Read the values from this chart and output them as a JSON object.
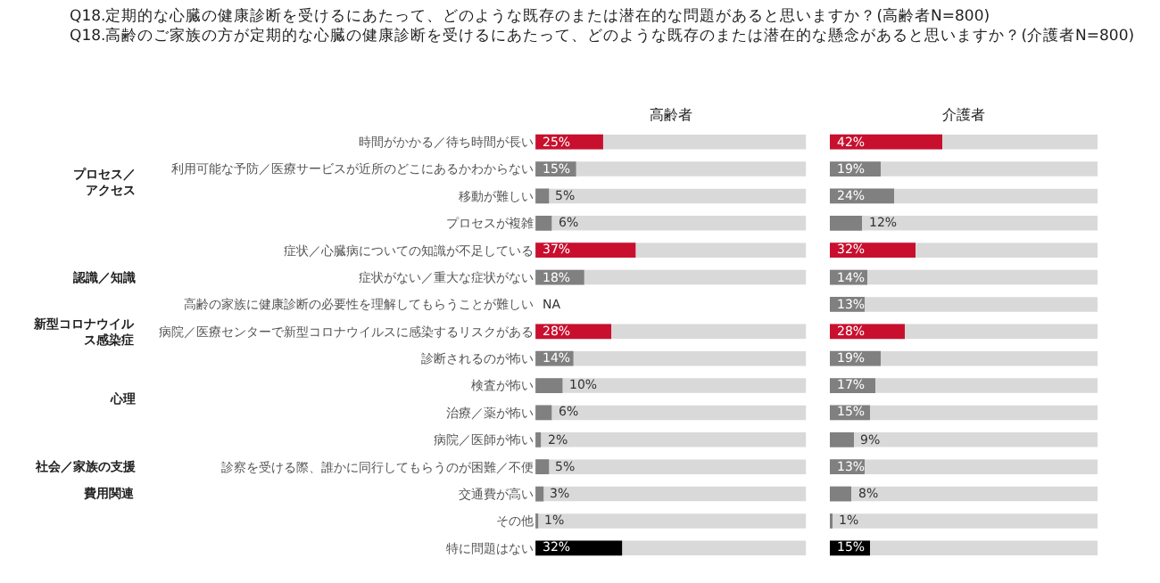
{
  "chart_data": [
    {
      "type": "bar",
      "orientation": "horizontal",
      "title": "Q18.定期的な心臓の健康診断を受けるにあたって、どのような既存のまたは潜在的な問題があると思いますか？(高齢者N=800)",
      "subtitle": "Q18.高齢のご家族の方が定期的な心臓の健康診断を受けるにあたって、どのような既存のまたは潜在的な懸念があると思いますか？(介護者N=800)",
      "categories": [
        "時間がかかる／待ち時間が長い",
        "利用可能な予防／医療サービスが近所のどこにあるかわからない",
        "移動が難しい",
        "プロセスが複雑",
        "症状／心臓病についての知識が不足している",
        "症状がない／重大な症状がない",
        "高齢の家族に健康診断の必要性を理解してもらうことが難しい",
        "病院／医療センターで新型コロナウイルスに感染するリスクがある",
        "診断されるのが怖い",
        "検査が怖い",
        "治療／薬が怖い",
        "病院／医師が怖い",
        "診察を受ける際、誰かに同行してもらうのが困難／不便",
        "交通費が高い",
        "その他",
        "特に問題はない"
      ],
      "series": [
        {
          "name": "高齢者",
          "values": [
            25,
            15,
            5,
            6,
            37,
            18,
            null,
            28,
            14,
            10,
            6,
            2,
            5,
            3,
            1,
            32
          ],
          "value_labels": [
            "25%",
            "15%",
            "5%",
            "6%",
            "37%",
            "18%",
            "NA",
            "28%",
            "14%",
            "10%",
            "6%",
            "2%",
            "5%",
            "3%",
            "1%",
            "32%"
          ],
          "colors": [
            "#c8102e",
            "#808080",
            "#808080",
            "#808080",
            "#c8102e",
            "#808080",
            "#808080",
            "#c8102e",
            "#808080",
            "#808080",
            "#808080",
            "#808080",
            "#808080",
            "#808080",
            "#808080",
            "#000000"
          ]
        }
      ],
      "xlim": [
        0,
        100
      ],
      "tick_labels": "y",
      "legend": false,
      "annotations": [
        "プロセス／アクセス",
        "認識／知識",
        "新型コロナウイルス感染症",
        "心理",
        "社会／家族の支援",
        "費用関連"
      ]
    },
    {
      "type": "bar",
      "orientation": "horizontal",
      "categories": [
        null,
        null,
        null,
        null,
        null,
        null,
        null,
        null,
        null,
        null,
        null,
        null,
        null,
        null,
        null,
        null
      ],
      "series": [
        {
          "name": "介護者",
          "values": [
            42,
            19,
            24,
            12,
            32,
            14,
            13,
            28,
            19,
            17,
            15,
            9,
            13,
            8,
            1,
            15
          ],
          "value_labels": [
            "42%",
            "19%",
            "24%",
            "12%",
            "32%",
            "14%",
            "13%",
            "28%",
            "19%",
            "17%",
            "15%",
            "9%",
            "13%",
            "8%",
            "1%",
            "15%"
          ],
          "colors": [
            "#c8102e",
            "#808080",
            "#808080",
            "#808080",
            "#c8102e",
            "#808080",
            "#808080",
            "#c8102e",
            "#808080",
            "#808080",
            "#808080",
            "#808080",
            "#808080",
            "#808080",
            "#808080",
            "#000000"
          ]
        }
      ],
      "xlim": [
        0,
        100
      ],
      "tick_labels": false,
      "legend": false
    }
  ]
}
